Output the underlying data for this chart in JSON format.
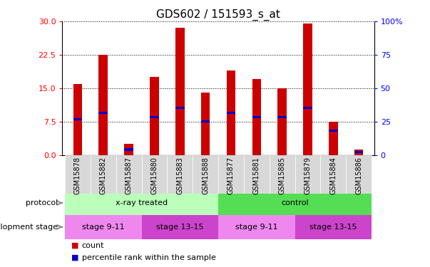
{
  "title": "GDS602 / 151593_s_at",
  "samples": [
    "GSM15878",
    "GSM15882",
    "GSM15887",
    "GSM15880",
    "GSM15883",
    "GSM15888",
    "GSM15877",
    "GSM15881",
    "GSM15885",
    "GSM15879",
    "GSM15884",
    "GSM15886"
  ],
  "count_values": [
    16.0,
    22.5,
    2.5,
    17.5,
    28.5,
    14.0,
    19.0,
    17.0,
    15.0,
    29.5,
    7.5,
    1.2
  ],
  "percentile_left_values": [
    8.0,
    9.5,
    1.2,
    8.5,
    10.5,
    7.5,
    9.5,
    8.5,
    8.5,
    10.5,
    5.5,
    0.7
  ],
  "ylim_left": [
    0,
    30
  ],
  "ylim_right": [
    0,
    100
  ],
  "yticks_left": [
    0,
    7.5,
    15,
    22.5,
    30
  ],
  "yticks_right": [
    0,
    25,
    50,
    75,
    100
  ],
  "bar_color": "#cc0000",
  "dot_color": "#0000cc",
  "bar_width": 0.35,
  "protocol_groups": [
    {
      "label": "x-ray treated",
      "indices": [
        0,
        1,
        2,
        3,
        4,
        5
      ],
      "color": "#bbffbb"
    },
    {
      "label": "control",
      "indices": [
        6,
        7,
        8,
        9,
        10,
        11
      ],
      "color": "#55dd55"
    }
  ],
  "dev_stage_groups": [
    {
      "label": "stage 9-11",
      "indices": [
        0,
        1,
        2
      ],
      "color": "#ee88ee"
    },
    {
      "label": "stage 13-15",
      "indices": [
        3,
        4,
        5
      ],
      "color": "#cc44cc"
    },
    {
      "label": "stage 9-11",
      "indices": [
        6,
        7,
        8
      ],
      "color": "#ee88ee"
    },
    {
      "label": "stage 13-15",
      "indices": [
        9,
        10,
        11
      ],
      "color": "#cc44cc"
    }
  ]
}
